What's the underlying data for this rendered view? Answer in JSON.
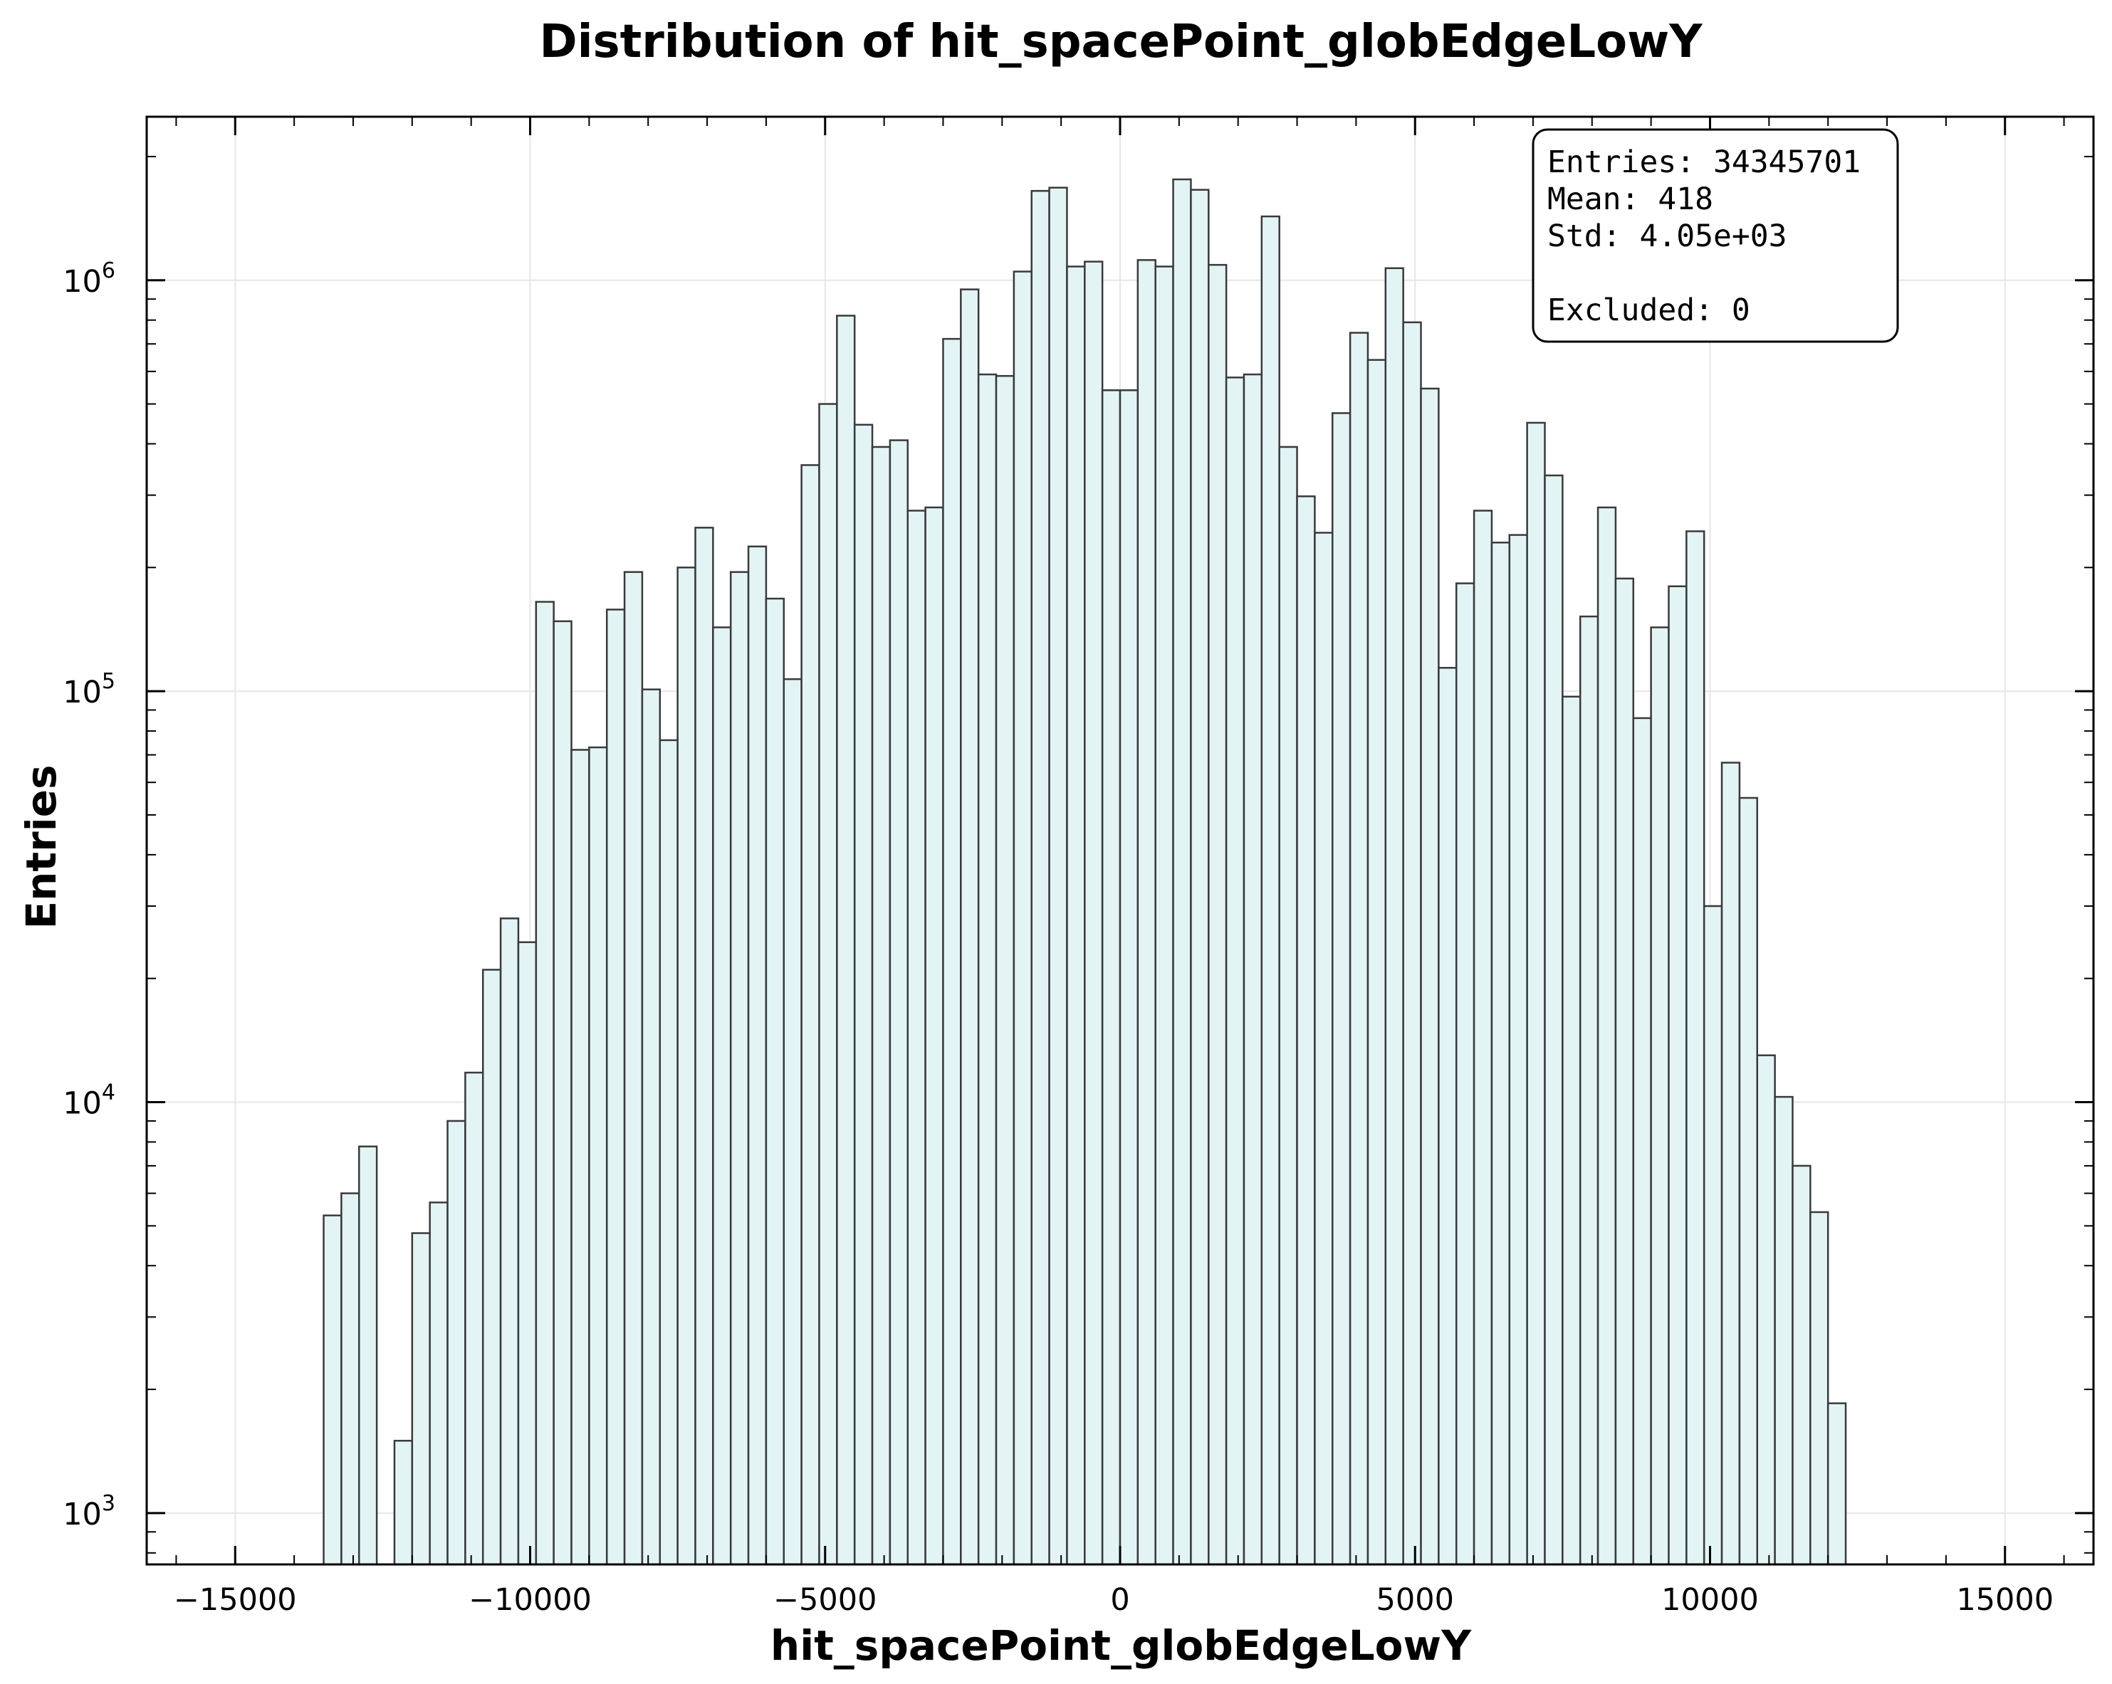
{
  "chart_data": {
    "type": "bar",
    "title": "Distribution of hit_spacePoint_globEdgeLowY",
    "xlabel": "hit_spacePoint_globEdgeLowY",
    "ylabel": "Entries",
    "y_scale": "log",
    "xlim": [
      -16500,
      16500
    ],
    "ylim": [
      750,
      2500000
    ],
    "grid": true,
    "x_ticks": [
      -15000,
      -10000,
      -5000,
      0,
      5000,
      10000,
      15000
    ],
    "x_tick_labels": [
      "−15000",
      "−10000",
      "−5000",
      "0",
      "5000",
      "10000",
      "15000"
    ],
    "y_ticks": [
      1000,
      10000,
      100000,
      1000000
    ],
    "y_tick_labels": [
      {
        "base": "10",
        "exp": "3"
      },
      {
        "base": "10",
        "exp": "4"
      },
      {
        "base": "10",
        "exp": "5"
      },
      {
        "base": "10",
        "exp": "6"
      }
    ],
    "bin_start": -13500,
    "bin_width": 300,
    "values": [
      5300,
      6000,
      7800,
      0,
      1500,
      4800,
      5700,
      9000,
      11800,
      21000,
      28000,
      24500,
      165000,
      148000,
      72000,
      73000,
      158000,
      195000,
      101000,
      76000,
      200000,
      250000,
      143000,
      195000,
      225000,
      168000,
      107000,
      355000,
      500000,
      820000,
      445000,
      393000,
      408000,
      275000,
      280000,
      720000,
      950000,
      590000,
      585000,
      1050000,
      1650000,
      1680000,
      1080000,
      1110000,
      540000,
      540000,
      1120000,
      1080000,
      1760000,
      1660000,
      1090000,
      580000,
      590000,
      1430000,
      393000,
      298000,
      243000,
      475000,
      745000,
      640000,
      1070000,
      790000,
      545000,
      114000,
      183000,
      275000,
      230000,
      240000,
      450000,
      335000,
      97000,
      152000,
      280000,
      188000,
      86000,
      143000,
      180000,
      245000,
      30000,
      67000,
      55000,
      13000,
      10300,
      7000,
      5400,
      1850
    ],
    "legend": "top-right",
    "stats_box": {
      "entries": "Entries: 34345701",
      "mean": "Mean: 418",
      "std": "Std: 4.05e+03",
      "excluded": "Excluded: 0"
    },
    "colors": {
      "bar_fill": "#e3f4f5",
      "bar_edge": "#3a3a3a"
    }
  }
}
